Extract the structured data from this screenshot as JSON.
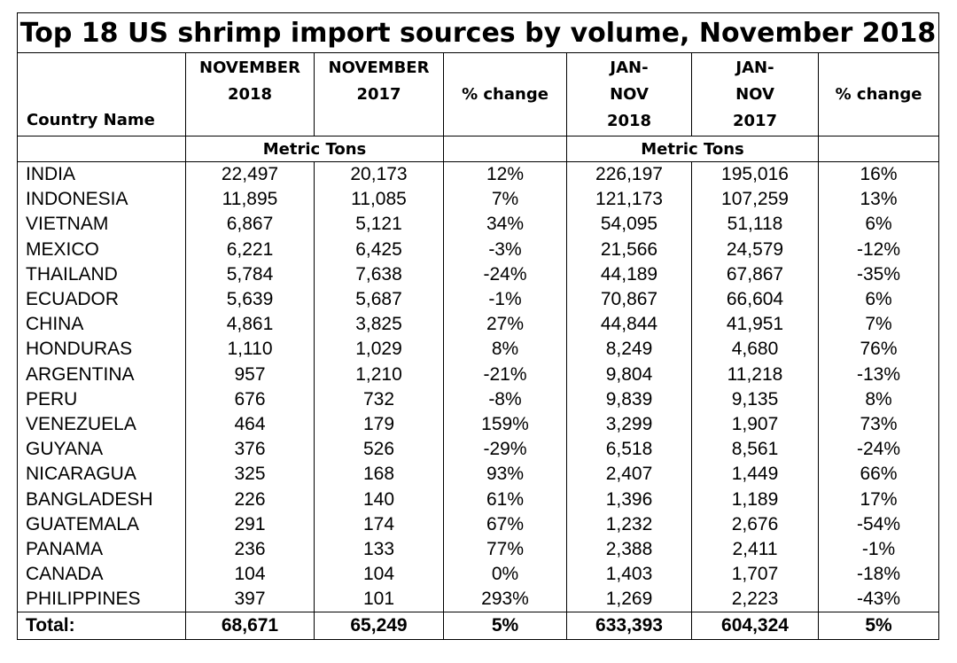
{
  "chart_data": {
    "type": "table",
    "title": "Top 18 US shrimp import sources by volume, November 2018",
    "headers": {
      "country": "Country Name",
      "nov2018": [
        "NOVEMBER",
        "2018"
      ],
      "nov2017": [
        "NOVEMBER",
        "2017"
      ],
      "pct1": "% change",
      "jan2018": [
        "JAN-",
        "NOV",
        "2018"
      ],
      "jan2017": [
        "JAN-",
        "NOV",
        "2017"
      ],
      "pct2": "% change"
    },
    "unit_left": "Metric Tons",
    "unit_right": "Metric Tons",
    "rows": [
      [
        "INDIA",
        "22,497",
        "20,173",
        "12%",
        "226,197",
        "195,016",
        "16%"
      ],
      [
        "INDONESIA",
        "11,895",
        "11,085",
        "7%",
        "121,173",
        "107,259",
        "13%"
      ],
      [
        "VIETNAM",
        "6,867",
        "5,121",
        "34%",
        "54,095",
        "51,118",
        "6%"
      ],
      [
        "MEXICO",
        "6,221",
        "6,425",
        "-3%",
        "21,566",
        "24,579",
        "-12%"
      ],
      [
        "THAILAND",
        "5,784",
        "7,638",
        "-24%",
        "44,189",
        "67,867",
        "-35%"
      ],
      [
        "ECUADOR",
        "5,639",
        "5,687",
        "-1%",
        "70,867",
        "66,604",
        "6%"
      ],
      [
        "CHINA",
        "4,861",
        "3,825",
        "27%",
        "44,844",
        "41,951",
        "7%"
      ],
      [
        "HONDURAS",
        "1,110",
        "1,029",
        "8%",
        "8,249",
        "4,680",
        "76%"
      ],
      [
        "ARGENTINA",
        "957",
        "1,210",
        "-21%",
        "9,804",
        "11,218",
        "-13%"
      ],
      [
        "PERU",
        "676",
        "732",
        "-8%",
        "9,839",
        "9,135",
        "8%"
      ],
      [
        "VENEZUELA",
        "464",
        "179",
        "159%",
        "3,299",
        "1,907",
        "73%"
      ],
      [
        "GUYANA",
        "376",
        "526",
        "-29%",
        "6,518",
        "8,561",
        "-24%"
      ],
      [
        "NICARAGUA",
        "325",
        "168",
        "93%",
        "2,407",
        "1,449",
        "66%"
      ],
      [
        "BANGLADESH",
        "226",
        "140",
        "61%",
        "1,396",
        "1,189",
        "17%"
      ],
      [
        "GUATEMALA",
        "291",
        "174",
        "67%",
        "1,232",
        "2,676",
        "-54%"
      ],
      [
        "PANAMA",
        "236",
        "133",
        "77%",
        "2,388",
        "2,411",
        "-1%"
      ],
      [
        "CANADA",
        "104",
        "104",
        "0%",
        "1,403",
        "1,707",
        "-18%"
      ],
      [
        "PHILIPPINES",
        "397",
        "101",
        "293%",
        "1,269",
        "2,223",
        "-43%"
      ]
    ],
    "total": [
      "Total:",
      "68,671",
      "65,249",
      "5%",
      "633,393",
      "604,324",
      "5%"
    ]
  }
}
